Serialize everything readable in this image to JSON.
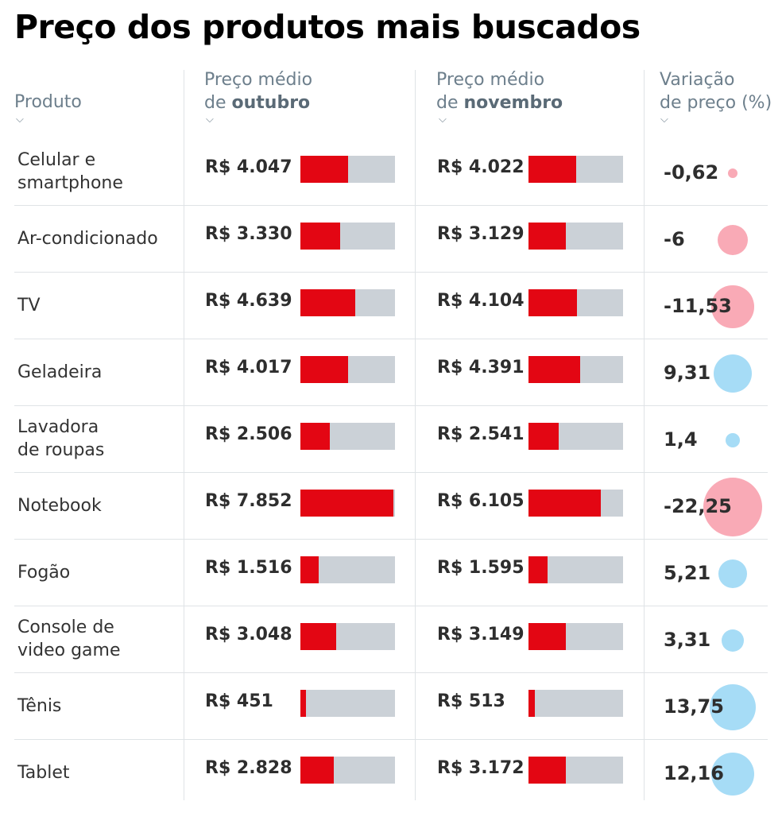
{
  "chart_data": {
    "type": "table",
    "title": "Preço dos produtos mais buscados",
    "columns": {
      "product": "Produto",
      "oct_prefix": "Preço médio",
      "oct_de": "de",
      "oct_month": "outubro",
      "nov_prefix": "Preço médio",
      "nov_de": "de",
      "nov_month": "novembro",
      "var_line1": "Variação",
      "var_line2": "de preço (%)"
    },
    "chevron": "⌵",
    "bar_max": 8000,
    "colors": {
      "bar_fill": "#e30613",
      "bar_track": "#cbd1d7",
      "negative_bubble": "#f9aab6",
      "positive_bubble": "#a6dcf6"
    },
    "rows": [
      {
        "name": [
          "Celular e",
          "smartphone"
        ],
        "oct": 4047,
        "oct_label": "R$ 4.047",
        "nov": 4022,
        "nov_label": "R$ 4.022",
        "variation": -0.62,
        "variation_label": "-0,62"
      },
      {
        "name": [
          "Ar-condicionado"
        ],
        "oct": 3330,
        "oct_label": "R$ 3.330",
        "nov": 3129,
        "nov_label": "R$ 3.129",
        "variation": -6,
        "variation_label": "-6"
      },
      {
        "name": [
          "TV"
        ],
        "oct": 4639,
        "oct_label": "R$ 4.639",
        "nov": 4104,
        "nov_label": "R$ 4.104",
        "variation": -11.53,
        "variation_label": "-11,53"
      },
      {
        "name": [
          "Geladeira"
        ],
        "oct": 4017,
        "oct_label": "R$ 4.017",
        "nov": 4391,
        "nov_label": "R$ 4.391",
        "variation": 9.31,
        "variation_label": "9,31"
      },
      {
        "name": [
          "Lavadora",
          "de roupas"
        ],
        "oct": 2506,
        "oct_label": "R$ 2.506",
        "nov": 2541,
        "nov_label": "R$ 2.541",
        "variation": 1.4,
        "variation_label": "1,4"
      },
      {
        "name": [
          "Notebook"
        ],
        "oct": 7852,
        "oct_label": "R$ 7.852",
        "nov": 6105,
        "nov_label": "R$ 6.105",
        "variation": -22.25,
        "variation_label": "-22,25"
      },
      {
        "name": [
          "Fogão"
        ],
        "oct": 1516,
        "oct_label": "R$ 1.516",
        "nov": 1595,
        "nov_label": "R$ 1.595",
        "variation": 5.21,
        "variation_label": "5,21"
      },
      {
        "name": [
          "Console de",
          "video game"
        ],
        "oct": 3048,
        "oct_label": "R$ 3.048",
        "nov": 3149,
        "nov_label": "R$ 3.149",
        "variation": 3.31,
        "variation_label": "3,31"
      },
      {
        "name": [
          "Tênis"
        ],
        "oct": 451,
        "oct_label": "R$ 451",
        "nov": 513,
        "nov_label": "R$ 513",
        "variation": 13.75,
        "variation_label": "13,75"
      },
      {
        "name": [
          "Tablet"
        ],
        "oct": 2828,
        "oct_label": "R$ 2.828",
        "nov": 3172,
        "nov_label": "R$ 3.172",
        "variation": 12.16,
        "variation_label": "12,16"
      }
    ]
  }
}
